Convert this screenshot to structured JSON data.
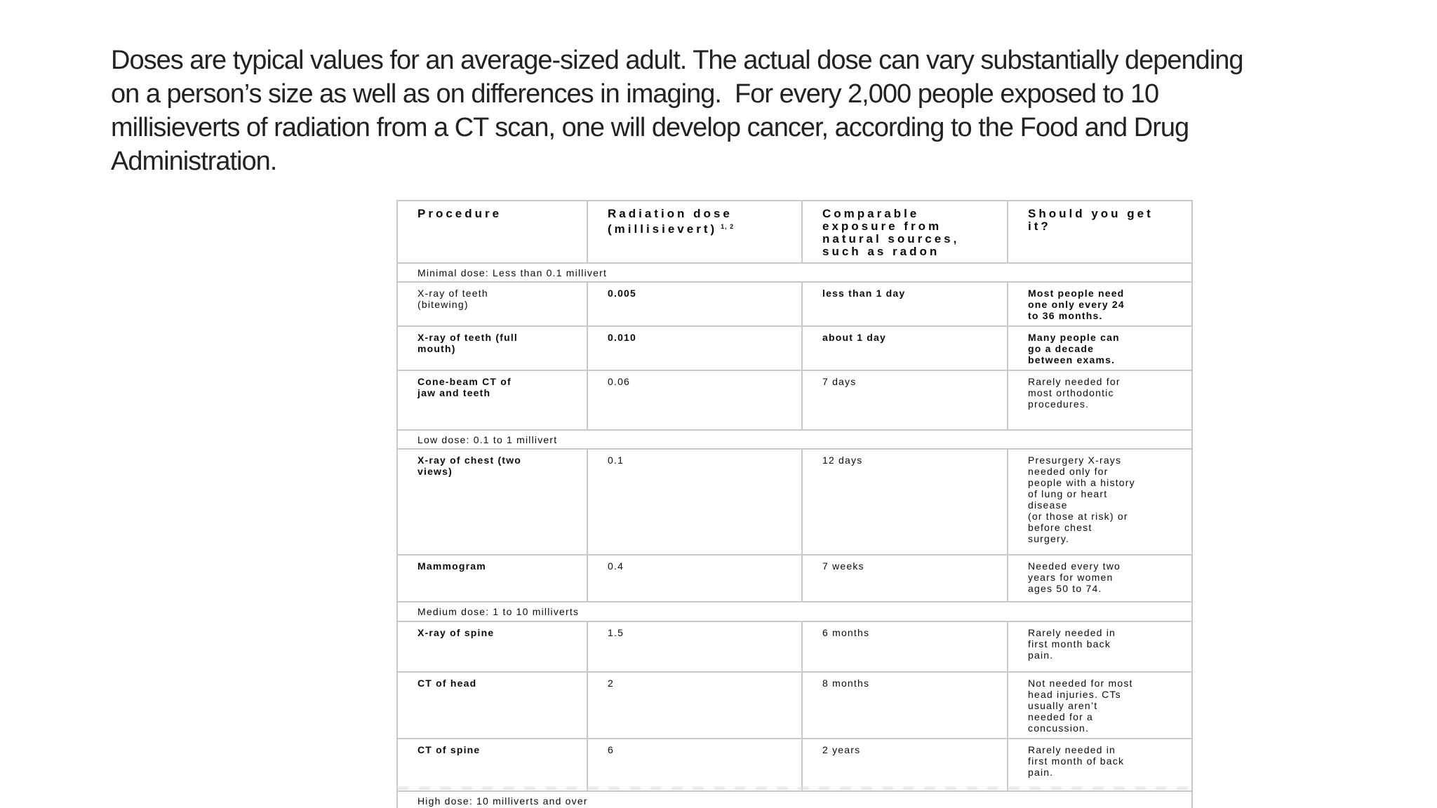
{
  "slide": {
    "paragraph": "Doses are typical values for an average-sized adult. The actual dose can vary substantially depending\non a person’s size as well as on differences in imaging.  For every 2,000 people exposed to 10\nmillisieverts of radiation from a CT scan, one will develop cancer, according to the Food and Drug\nAdministration."
  },
  "table": {
    "columns": [
      {
        "label": "Procedure"
      },
      {
        "label": "Radiation dose\n(millisievert)",
        "superscript": "1, 2"
      },
      {
        "label": "Comparable\nexposure from\nnatural sources,\nsuch as radon"
      },
      {
        "label": "Should you get\nit?"
      }
    ],
    "sections": [
      {
        "label": "Minimal dose: Less than 0.1 millivert"
      },
      {
        "label": "Low dose: 0.1 to 1 millivert"
      },
      {
        "label": "Medium dose: 1 to 10 milliverts"
      },
      {
        "label": "High dose: 10 milliverts and over"
      }
    ],
    "rows": [
      {
        "procedure": "X-ray of teeth\n(bitewing)",
        "dose": "0.005",
        "exposure": "less than 1 day",
        "advice": "Most people need\none only every 24\nto 36 months."
      },
      {
        "procedure": "X-ray of teeth (full\nmouth)",
        "dose": "0.010",
        "exposure": "about 1 day",
        "advice": "Many people can\ngo a decade\nbetween exams."
      },
      {
        "procedure": "Cone-beam CT of\njaw and teeth",
        "dose": "0.06",
        "exposure": "7 days",
        "advice": "Rarely needed for\nmost orthodontic\nprocedures."
      },
      {
        "procedure": "X-ray of chest (two\nviews)",
        "dose": "0.1",
        "exposure": "12 days",
        "advice": "Presurgery X-rays\nneeded only for\npeople with a history\nof lung or heart\ndisease\n(or those at risk) or\nbefore chest\nsurgery."
      },
      {
        "procedure": "Mammogram",
        "dose": "0.4",
        "exposure": "7 weeks",
        "advice": "Needed every two\nyears for women\nages 50 to 74."
      },
      {
        "procedure": "X-ray of spine",
        "dose": "1.5",
        "exposure": "6 months",
        "advice": "Rarely needed in\nfirst month back\npain."
      },
      {
        "procedure": "CT of head",
        "dose": "2",
        "exposure": "8 months",
        "advice": "Not needed for most\nhead injuries. CTs\nusually aren’t\nneeded for a\nconcussion."
      },
      {
        "procedure": "CT of spine",
        "dose": "6",
        "exposure": "2 years",
        "advice": "Rarely needed in\nfirst month of back\npain."
      }
    ]
  }
}
